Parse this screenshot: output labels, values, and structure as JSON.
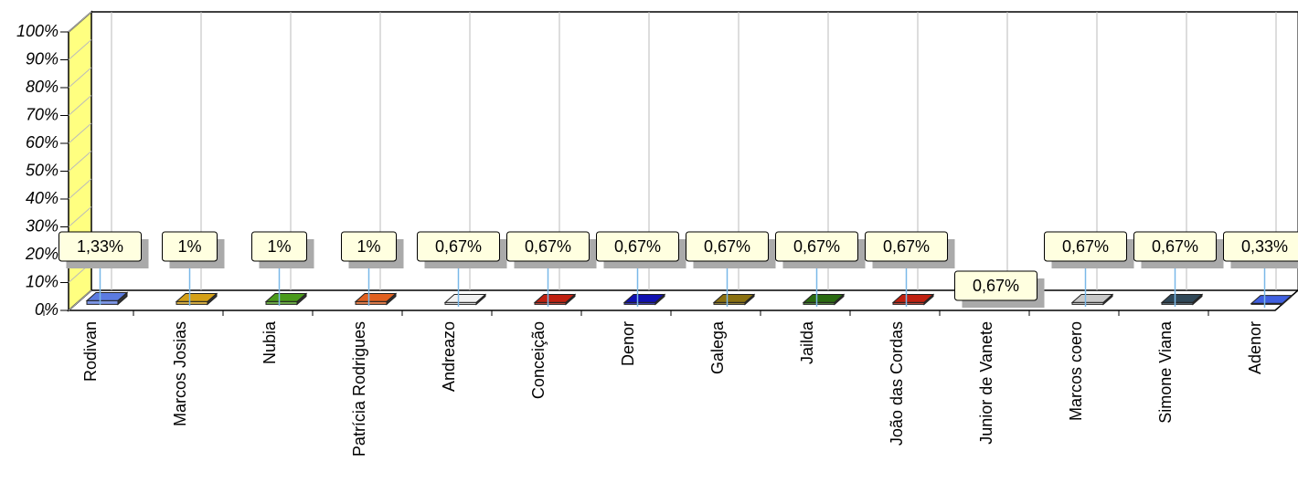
{
  "chart_data": {
    "type": "bar3d",
    "categories": [
      "Rodivan",
      "Marcos Josias",
      "Nubia",
      "Patrícia Rodrigues",
      "Andreazo",
      "Conceição",
      "Denor",
      "Galega",
      "Jailda",
      "João das Cordas",
      "Junior de Vanete",
      "Marcos coero",
      "Simone Viana",
      "Adenor"
    ],
    "values": [
      1.33,
      1,
      1,
      1,
      0.67,
      0.67,
      0.67,
      0.67,
      0.67,
      0.67,
      0.67,
      0.67,
      0.67,
      0.33
    ],
    "value_labels": [
      "1,33%",
      "1%",
      "1%",
      "1%",
      "0,67%",
      "0,67%",
      "0,67%",
      "0,67%",
      "0,67%",
      "0,67%",
      "0,67%",
      "0,67%",
      "0,67%",
      "0,33%"
    ],
    "colors": [
      "#5b7be0",
      "#d4a017",
      "#4a9a1a",
      "#e06020",
      "#f2f2f2",
      "#c02010",
      "#1010b0",
      "#8a7010",
      "#2a6a10",
      "#c02010",
      "#ffffff",
      "#c8c8c8",
      "#304858",
      "#4060e0"
    ],
    "ylim": [
      0,
      100
    ],
    "yticks": [
      {
        "value": 0,
        "label": "0%"
      },
      {
        "value": 10,
        "label": "10%"
      },
      {
        "value": 20,
        "label": "20%"
      },
      {
        "value": 30,
        "label": "30%"
      },
      {
        "value": 40,
        "label": "40%"
      },
      {
        "value": 50,
        "label": "50%"
      },
      {
        "value": 60,
        "label": "60%"
      },
      {
        "value": 70,
        "label": "70%"
      },
      {
        "value": 80,
        "label": "80%"
      },
      {
        "value": 90,
        "label": "90%"
      },
      {
        "value": 100,
        "label": "100%"
      }
    ],
    "grid": true
  }
}
